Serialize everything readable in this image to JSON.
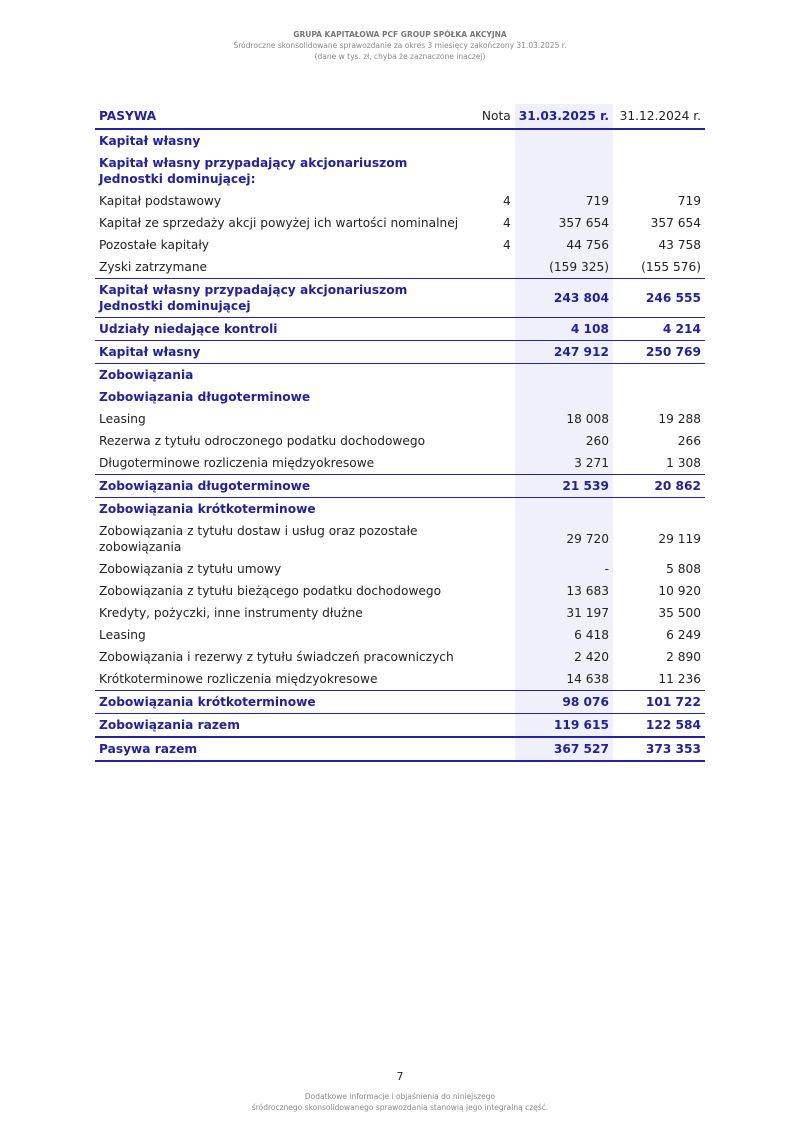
{
  "header": {
    "company": "GRUPA KAPITAŁOWA PCF GROUP SPÓŁKA AKCYJNA",
    "report": "Śródroczne skonsolidowane sprawozdanie za okres 3 miesięcy zakończony 31.03.2025 r.",
    "units": "(dane w tys. zł, chyba że zaznaczone inaczej)"
  },
  "table": {
    "columns": [
      "PASYWA",
      "Nota",
      "31.03.2025 r.",
      "31.12.2024 r."
    ],
    "rows": [
      {
        "label": "Kapitał własny"
      },
      {
        "label": "Kapitał własny przypadający akcjonariuszom Jednostki dominującej:"
      },
      {
        "label": "Kapitał podstawowy",
        "note": "4",
        "v1": "719",
        "v2": "719"
      },
      {
        "label": "Kapitał ze sprzedaży akcji powyżej ich wartości nominalnej",
        "note": "4",
        "v1": "357 654",
        "v2": "357 654"
      },
      {
        "label": "Pozostałe kapitały",
        "note": "4",
        "v1": "44 756",
        "v2": "43 758"
      },
      {
        "label": "Zyski zatrzymane",
        "v1": "(159 325)",
        "v2": "(155 576)"
      },
      {
        "label": "Kapitał własny przypadający akcjonariuszom Jednostki dominującej",
        "v1": "243 804",
        "v2": "246 555"
      },
      {
        "label": "Udziały niedające kontroli",
        "v1": "4 108",
        "v2": "4 214"
      },
      {
        "label": "Kapitał własny",
        "v1": "247 912",
        "v2": "250 769"
      },
      {
        "label": "Zobowiązania"
      },
      {
        "label": "Zobowiązania długoterminowe"
      },
      {
        "label": "Leasing",
        "v1": "18 008",
        "v2": "19 288"
      },
      {
        "label": "Rezerwa z tytułu odroczonego podatku dochodowego",
        "v1": "260",
        "v2": "266"
      },
      {
        "label": "Długoterminowe rozliczenia międzyokresowe",
        "v1": "3 271",
        "v2": "1 308"
      },
      {
        "label": "Zobowiązania długoterminowe",
        "v1": "21 539",
        "v2": "20 862"
      },
      {
        "label": "Zobowiązania krótkoterminowe"
      },
      {
        "label": "Zobowiązania z tytułu dostaw i usług oraz pozostałe zobowiązania",
        "v1": "29 720",
        "v2": "29 119"
      },
      {
        "label": "Zobowiązania z tytułu umowy",
        "v1": "-",
        "v2": "5 808"
      },
      {
        "label": "Zobowiązania z tytułu bieżącego podatku dochodowego",
        "v1": "13 683",
        "v2": "10 920"
      },
      {
        "label": "Kredyty, pożyczki, inne instrumenty dłużne",
        "v1": "31 197",
        "v2": "35 500"
      },
      {
        "label": "Leasing",
        "v1": "6 418",
        "v2": "6 249"
      },
      {
        "label": "Zobowiązania i rezerwy z tytułu świadczeń pracowniczych",
        "v1": "2 420",
        "v2": "2 890"
      },
      {
        "label": "Krótkoterminowe rozliczenia międzyokresowe",
        "v1": "14 638",
        "v2": "11 236"
      },
      {
        "label": "Zobowiązania krótkoterminowe",
        "v1": "98 076",
        "v2": "101 722"
      },
      {
        "label": "Zobowiązania razem",
        "v1": "119 615",
        "v2": "122 584"
      },
      {
        "label": "Pasywa razem",
        "v1": "367 527",
        "v2": "373 353"
      }
    ]
  },
  "footer": {
    "page": "7",
    "note_line1": "Dodatkowe informacje i objaśnienia do niniejszego",
    "note_line2": "śródrocznego skonsolidowanego sprawozdania  stanowią jego integralną część."
  }
}
